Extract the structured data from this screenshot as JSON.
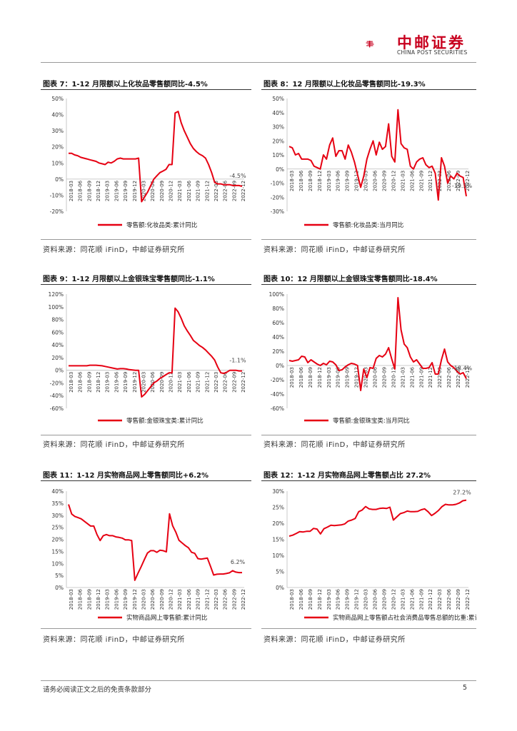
{
  "header": {
    "logo_cn": "中邮证券",
    "logo_en": "CHINA POST SECURITIES",
    "brand_color": "#c8001e"
  },
  "panels": [
    {
      "title": "图表 7：1-12 月限额以上化妆品零售额同比-4.5%",
      "source": "资料来源：同花顺 iFinD，中邮证券研究所"
    },
    {
      "title": "图表 8：12 月限额以上化妆品零售额同比-19.3%",
      "source": "资料来源：同花顺 iFinD，中邮证券研究所"
    },
    {
      "title": "图表 9：1-12 月限额以上金银珠宝零售额同比-1.1%",
      "source": "资料来源：同花顺 iFinD，中邮证券研究所"
    },
    {
      "title": "图表 10：12 月限额以上金银珠宝零售额同比-18.4%",
      "source": "资料来源：同花顺 iFinD，中邮证券研究所"
    },
    {
      "title": "图表 11：1-12 月实物商品网上零售额同比+6.2%",
      "source": "资料来源：同花顺 iFinD，中邮证券研究所"
    },
    {
      "title": "图表 12：1-12 月实物商品网上零售额占比 27.2%",
      "source": "资料来源：同花顺 iFinD，中邮证券研究所"
    }
  ],
  "chart_data": [
    {
      "type": "line",
      "title": "",
      "legend": "零售额:化妆品类:累计同比",
      "ylim": [
        -20,
        50
      ],
      "yticks": [
        -20,
        -10,
        0,
        10,
        20,
        30,
        40,
        50
      ],
      "unit": "%",
      "x_labels": [
        "2018-03",
        "2018-06",
        "2018-09",
        "2018-12",
        "2019-03",
        "2019-06",
        "2019-09",
        "2019-12",
        "2020-03",
        "2020-06",
        "2020-09",
        "2020-12",
        "2021-03",
        "2021-06",
        "2021-09",
        "2021-12",
        "2022-03",
        "2022-06",
        "2022-09",
        "2022-12"
      ],
      "annotation": "-4.5%",
      "color": "#e60012",
      "values": [
        16,
        16,
        15,
        14.5,
        13.5,
        13,
        12.5,
        12,
        11.5,
        11,
        10,
        9.5,
        9,
        10.5,
        10,
        11,
        12.5,
        13,
        12.5,
        12.5,
        12.5,
        12.5,
        12.5,
        13,
        -14,
        -11,
        -8,
        -4,
        0,
        2,
        4,
        5,
        6,
        9,
        9,
        41,
        42,
        35,
        30,
        26,
        22,
        19,
        17,
        15.5,
        14.5,
        13,
        9,
        4,
        -2,
        -3,
        -3,
        -3.5,
        -3.5,
        -3.5,
        -4,
        -4,
        -4,
        -4.5
      ]
    },
    {
      "type": "line",
      "legend": "零售额:化妆品类:当月同比",
      "ylim": [
        -30,
        50
      ],
      "yticks": [
        -30,
        -20,
        -10,
        0,
        10,
        20,
        30,
        40,
        50
      ],
      "unit": "%",
      "x_labels": [
        "2018-03",
        "2018-06",
        "2018-09",
        "2018-12",
        "2019-03",
        "2019-06",
        "2019-09",
        "2019-12",
        "2020-03",
        "2020-06",
        "2020-09",
        "2020-12",
        "2021-03",
        "2021-06",
        "2021-09",
        "2021-12",
        "2022-03",
        "2022-06",
        "2022-09",
        "2022-12"
      ],
      "annotation": "-19.3%",
      "color": "#e60012",
      "values": [
        16,
        15,
        10,
        11,
        7,
        7,
        7,
        6,
        2,
        1,
        0,
        10,
        7,
        17,
        22,
        9,
        13,
        13,
        7,
        17,
        12,
        5,
        -4,
        -13,
        -5,
        7,
        14,
        20,
        10,
        19,
        14,
        16,
        32,
        9,
        5,
        42,
        18,
        15,
        14,
        2,
        0,
        5,
        7,
        8,
        3,
        1,
        2,
        -3,
        -22,
        8,
        2,
        -10,
        -5,
        -7,
        -3,
        -5,
        -6,
        -19.3
      ]
    },
    {
      "type": "line",
      "legend": "零售额:金银珠宝类:累计同比",
      "ylim": [
        -60,
        120
      ],
      "yticks": [
        -60,
        -40,
        -20,
        0,
        20,
        40,
        60,
        80,
        100,
        120
      ],
      "unit": "%",
      "x_labels": [
        "2018-03",
        "2018-06",
        "2018-09",
        "2018-12",
        "2019-03",
        "2019-06",
        "2019-09",
        "2019-12",
        "2020-03",
        "2020-06",
        "2020-09",
        "2020-12",
        "2021-03",
        "2021-06",
        "2021-09",
        "2021-12",
        "2022-03",
        "2022-06",
        "2022-09",
        "2022-12"
      ],
      "annotation": "-1.1%",
      "color": "#e60012",
      "values": [
        7,
        7,
        7,
        7,
        7,
        7,
        7,
        8,
        8,
        8,
        7.5,
        7,
        6,
        5,
        4,
        3,
        2,
        2.5,
        2.5,
        2,
        1,
        0.5,
        0,
        0,
        -42,
        -38,
        -32,
        -26,
        -20,
        -17,
        -13,
        -10,
        -7,
        -4,
        -4,
        98,
        92,
        82,
        70,
        62,
        55,
        47,
        43,
        39,
        36,
        32,
        27,
        22,
        16,
        5,
        -4,
        -5,
        -3,
        0,
        0,
        0,
        -1,
        -1.1
      ]
    },
    {
      "type": "line",
      "legend": "零售额:金银珠宝类:当月同比",
      "ylim": [
        -60,
        100
      ],
      "yticks": [
        -60,
        -40,
        -20,
        0,
        20,
        40,
        60,
        80,
        100
      ],
      "unit": "%",
      "x_labels": [
        "2018-03",
        "2018-06",
        "2018-09",
        "2018-12",
        "2019-03",
        "2019-06",
        "2019-09",
        "2019-12",
        "2020-03",
        "2020-06",
        "2020-09",
        "2020-12",
        "2021-03",
        "2021-06",
        "2021-09",
        "2021-12",
        "2022-03",
        "2022-06",
        "2022-09",
        "2022-12"
      ],
      "annotation": "-18.4%",
      "color": "#e60012",
      "values": [
        7,
        6,
        7,
        8,
        13,
        12,
        4,
        8,
        5,
        2,
        0,
        3,
        1,
        6,
        5,
        1,
        -7,
        -6,
        -2,
        1,
        3,
        2,
        0,
        -35,
        -5,
        -17,
        -3,
        -4,
        10,
        14,
        12,
        16,
        25,
        9,
        -5,
        95,
        50,
        30,
        25,
        12,
        5,
        8,
        2,
        -4,
        -4,
        -3,
        4,
        -12,
        -12,
        8,
        23,
        5,
        0,
        -3,
        -8,
        -12,
        -10,
        -18.4
      ]
    },
    {
      "type": "line",
      "legend": "实物商品网上零售额:累计同比",
      "ylim": [
        0,
        40
      ],
      "yticks": [
        0,
        5,
        10,
        15,
        20,
        25,
        30,
        35,
        40
      ],
      "unit": "%",
      "x_labels": [
        "2018-03",
        "2018-06",
        "2018-09",
        "2018-12",
        "2019-03",
        "2019-06",
        "2019-09",
        "2019-12",
        "2020-03",
        "2020-06",
        "2020-09",
        "2020-12",
        "2021-03",
        "2021-06",
        "2021-09",
        "2021-12",
        "2022-03",
        "2022-06",
        "2022-09",
        "2022-12"
      ],
      "annotation": "6.2%",
      "color": "#e60012",
      "values": [
        34.5,
        30.5,
        29.5,
        29,
        28.5,
        27.5,
        26.5,
        25.5,
        25.5,
        22,
        19.5,
        21.5,
        22,
        21.5,
        21.5,
        21,
        20.8,
        20.5,
        19.8,
        19.8,
        19.5,
        3,
        5.9,
        8.6,
        11.5,
        14.3,
        15.3,
        15.3,
        14.6,
        15.5,
        15.3,
        14.8,
        30.6,
        25.6,
        23,
        19.6,
        18.5,
        17.4,
        16.5,
        14.6,
        14.2,
        12,
        11.8,
        12,
        12.2,
        8.8,
        5.2,
        5.5,
        5.6,
        5.6,
        5.8,
        6.1,
        7,
        6.4,
        6.2,
        6.2
      ]
    },
    {
      "type": "line",
      "legend": "实物商品网上零售额占社会消费品零售总额的比重:累计值",
      "ylim": [
        0,
        30
      ],
      "yticks": [
        0,
        5,
        10,
        15,
        20,
        25,
        30
      ],
      "unit": "%",
      "x_labels": [
        "2018-03",
        "2018-06",
        "2018-09",
        "2018-12",
        "2019-03",
        "2019-06",
        "2019-09",
        "2019-12",
        "2020-03",
        "2020-06",
        "2020-09",
        "2020-12",
        "2021-03",
        "2021-06",
        "2021-09",
        "2021-12",
        "2022-03",
        "2022-06",
        "2022-09",
        "2022-12"
      ],
      "annotation": "27.2%",
      "color": "#e60012",
      "values": [
        16,
        16.3,
        16.8,
        17.4,
        17.3,
        17.5,
        17.5,
        18.4,
        18.2,
        16.7,
        18.3,
        18.8,
        19.4,
        19.3,
        19.4,
        19.5,
        19.8,
        20.7,
        21,
        21.5,
        23.6,
        24.1,
        25.2,
        24.5,
        24.3,
        24.3,
        24.6,
        24.7,
        24.6,
        25,
        21,
        22,
        23,
        23.3,
        23.8,
        23.6,
        23.6,
        23.7,
        24.2,
        24.5,
        23.6,
        22.4,
        23.1,
        24,
        25.2,
        25.9,
        25.7,
        25.7,
        25.9,
        26.3,
        27,
        27.2
      ]
    }
  ],
  "footer": {
    "note": "请务必阅读正文之后的免责条款部分",
    "page": "5"
  }
}
